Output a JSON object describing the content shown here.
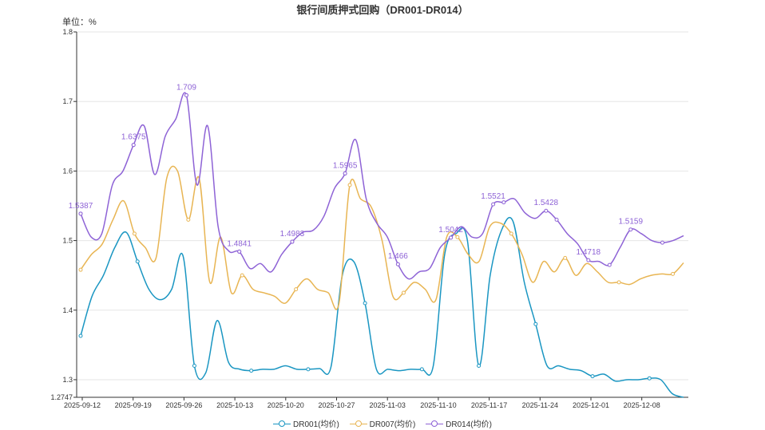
{
  "chart_data": {
    "type": "line",
    "title": "银行间质押式回购（DR001-DR014）",
    "unit_label": "单位：%",
    "ylim": [
      1.2747,
      1.8
    ],
    "y_ticks": [
      "1.2747",
      "1.3",
      "1.4",
      "1.5",
      "1.6",
      "1.7",
      "1.8"
    ],
    "x_ticks": [
      "2025-09-12",
      "2025-09-19",
      "2025-09-26",
      "2025-10-13",
      "2025-10-20",
      "2025-10-27",
      "2025-11-03",
      "2025-11-10",
      "2025-11-17",
      "2025-11-24",
      "2025-12-01",
      "2025-12-08"
    ],
    "grid": true,
    "legend_position": "bottom",
    "series": [
      {
        "name": "DR001(均价)",
        "color": "#1a96c2",
        "values": [
          1.363,
          1.42,
          1.45,
          1.49,
          1.512,
          1.47,
          1.43,
          1.415,
          1.43,
          1.478,
          1.32,
          1.31,
          1.385,
          1.325,
          1.315,
          1.313,
          1.315,
          1.315,
          1.32,
          1.315,
          1.315,
          1.316,
          1.318,
          1.45,
          1.47,
          1.41,
          1.315,
          1.315,
          1.313,
          1.315,
          1.315,
          1.32,
          1.48,
          1.51,
          1.5,
          1.32,
          1.45,
          1.515,
          1.528,
          1.44,
          1.38,
          1.32,
          1.32,
          1.315,
          1.313,
          1.305,
          1.308,
          1.298,
          1.3,
          1.3,
          1.302,
          1.3,
          1.28,
          1.2747
        ],
        "labels": []
      },
      {
        "name": "DR007(均价)",
        "color": "#e8b553",
        "values": [
          1.458,
          1.48,
          1.495,
          1.53,
          1.557,
          1.51,
          1.49,
          1.475,
          1.59,
          1.6,
          1.53,
          1.59,
          1.44,
          1.505,
          1.425,
          1.45,
          1.43,
          1.425,
          1.42,
          1.41,
          1.43,
          1.445,
          1.43,
          1.425,
          1.41,
          1.58,
          1.56,
          1.548,
          1.5,
          1.42,
          1.425,
          1.44,
          1.43,
          1.415,
          1.505,
          1.505,
          1.48,
          1.47,
          1.52,
          1.525,
          1.51,
          1.48,
          1.44,
          1.47,
          1.455,
          1.475,
          1.45,
          1.467,
          1.455,
          1.44,
          1.44,
          1.437,
          1.445,
          1.45,
          1.452,
          1.452,
          1.468
        ],
        "labels": []
      },
      {
        "name": "DR014(均价)",
        "color": "#8e63d6",
        "values": [
          1.5387,
          1.505,
          1.51,
          1.58,
          1.6,
          1.6375,
          1.665,
          1.595,
          1.65,
          1.675,
          1.709,
          1.58,
          1.665,
          1.52,
          1.485,
          1.4841,
          1.46,
          1.467,
          1.455,
          1.48,
          1.4983,
          1.512,
          1.515,
          1.535,
          1.575,
          1.5965,
          1.645,
          1.56,
          1.525,
          1.505,
          1.466,
          1.445,
          1.455,
          1.46,
          1.49,
          1.5042,
          1.52,
          1.505,
          1.51,
          1.5521,
          1.555,
          1.56,
          1.54,
          1.532,
          1.5428,
          1.53,
          1.51,
          1.495,
          1.4718,
          1.47,
          1.465,
          1.49,
          1.5159,
          1.51,
          1.5,
          1.497,
          1.5,
          1.507
        ],
        "labels": [
          "1.5387",
          "1.6375",
          "1.709",
          "1.4841",
          "1.4983",
          "1.5965",
          "1.466",
          "1.5042",
          "1.5521",
          "1.5428",
          "1.4718",
          "1.5159"
        ]
      }
    ]
  }
}
